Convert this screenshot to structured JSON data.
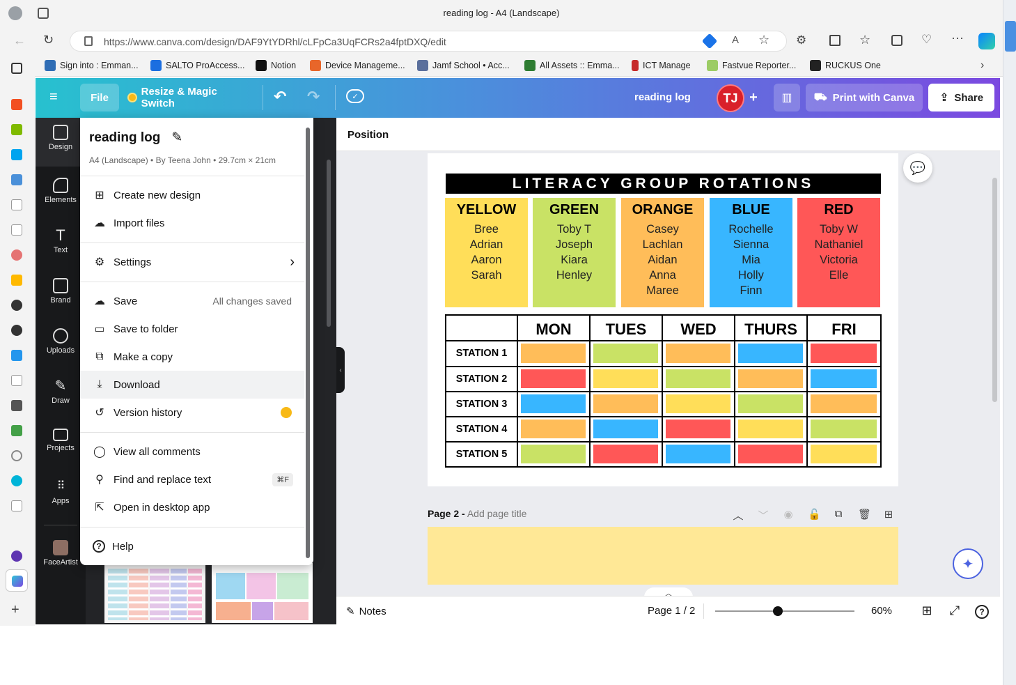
{
  "browser": {
    "tab_title": "reading log - A4 (Landscape)",
    "url": "https://www.canva.com/design/DAF9YtYDRhl/cLFpCa3UqFCRs2a4fptDXQ/edit",
    "bookmarks": [
      {
        "label": "Sign into : Emman..."
      },
      {
        "label": "SALTO ProAccess..."
      },
      {
        "label": "Notion"
      },
      {
        "label": "Device Manageme..."
      },
      {
        "label": "Jamf School • Acc..."
      },
      {
        "label": "All Assets :: Emma..."
      },
      {
        "label": "ICT Manage"
      },
      {
        "label": "Fastvue Reporter..."
      },
      {
        "label": "RUCKUS One"
      }
    ]
  },
  "topbar": {
    "file_label": "File",
    "resize_label": "Resize & Magic Switch",
    "doc_title": "reading log",
    "avatar_initials": "TJ",
    "print_label": "Print with Canva",
    "share_label": "Share"
  },
  "rail": {
    "items": [
      {
        "label": "Design"
      },
      {
        "label": "Elements"
      },
      {
        "label": "Text"
      },
      {
        "label": "Brand"
      },
      {
        "label": "Uploads"
      },
      {
        "label": "Draw"
      },
      {
        "label": "Projects"
      },
      {
        "label": "Apps"
      },
      {
        "label": "FaceArtist"
      }
    ]
  },
  "file_menu": {
    "title": "reading log",
    "subtitle": "A4 (Landscape) • By Teena John • 29.7cm × 21cm",
    "create": "Create new design",
    "import": "Import files",
    "settings": "Settings",
    "save": "Save",
    "save_status": "All changes saved",
    "save_folder": "Save to folder",
    "copy": "Make a copy",
    "download": "Download",
    "version": "Version history",
    "comments": "View all comments",
    "find": "Find and replace text",
    "find_shortcut": "⌘F",
    "desktop": "Open in desktop app",
    "help": "Help"
  },
  "editor": {
    "position_label": "Position",
    "page2_prefix": "Page 2 -",
    "page2_title_placeholder": "Add page title",
    "notes_label": "Notes",
    "page_indicator": "Page 1 / 2",
    "zoom": "60%",
    "zoom_fraction": 0.45
  },
  "design": {
    "banner": "LITERACY GROUP ROTATIONS",
    "colors": {
      "yellow": "#ffde59",
      "green": "#c9e265",
      "orange": "#ffbd59",
      "blue": "#38b6ff",
      "red": "#ff5757"
    },
    "groups": [
      {
        "name": "YELLOW",
        "color": "yellow",
        "members": "Bree\nAdrian\nAaron\nSarah"
      },
      {
        "name": "GREEN",
        "color": "green",
        "members": "Toby T\nJoseph\nKiara\nHenley"
      },
      {
        "name": "ORANGE",
        "color": "orange",
        "members": "Casey\nLachlan\nAidan\nAnna\nMaree"
      },
      {
        "name": "BLUE",
        "color": "blue",
        "members": "Rochelle\nSienna\nMia\nHolly\nFinn"
      },
      {
        "name": "RED",
        "color": "red",
        "members": "Toby W\nNathaniel\nVictoria\nElle"
      }
    ],
    "days": [
      "MON",
      "TUES",
      "WED",
      "THURS",
      "FRI"
    ],
    "stations": [
      {
        "label": "STATION 1",
        "cells": [
          "orange",
          "green",
          "orange",
          "blue",
          "red"
        ]
      },
      {
        "label": "STATION 2",
        "cells": [
          "red",
          "yellow",
          "green",
          "orange",
          "blue"
        ]
      },
      {
        "label": "STATION 3",
        "cells": [
          "blue",
          "orange",
          "yellow",
          "green",
          "orange"
        ]
      },
      {
        "label": "STATION 4",
        "cells": [
          "orange",
          "blue",
          "red",
          "yellow",
          "green"
        ]
      },
      {
        "label": "STATION 5",
        "cells": [
          "green",
          "red",
          "blue",
          "red",
          "yellow"
        ]
      }
    ]
  }
}
